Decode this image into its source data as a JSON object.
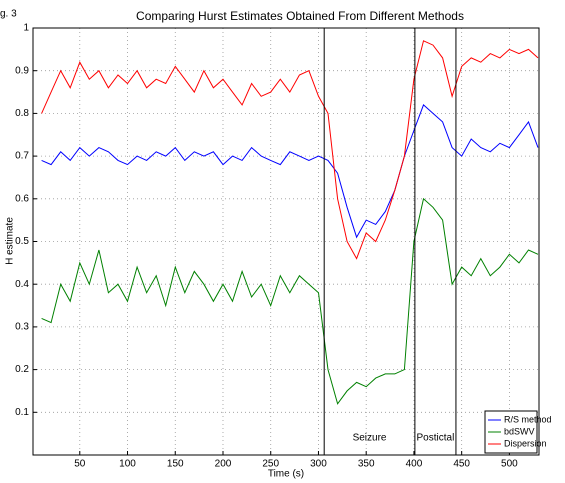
{
  "chart_data": {
    "type": "line",
    "figure_label": "g. 3",
    "title": "Comparing Hurst Estimates Obtained From Different Methods",
    "x_label": "Time (s)",
    "y_label": "H estimate",
    "x": [
      10,
      20,
      30,
      40,
      50,
      60,
      70,
      80,
      90,
      100,
      110,
      120,
      130,
      140,
      150,
      160,
      170,
      180,
      190,
      200,
      210,
      220,
      230,
      240,
      250,
      260,
      270,
      280,
      290,
      300,
      310,
      320,
      330,
      340,
      350,
      360,
      370,
      380,
      390,
      400,
      410,
      420,
      430,
      440,
      450,
      460,
      470,
      480,
      490,
      500,
      510,
      520,
      530
    ],
    "series": [
      {
        "name": "R/S method",
        "color": "#0000ff",
        "values": [
          0.69,
          0.68,
          0.71,
          0.69,
          0.72,
          0.7,
          0.72,
          0.71,
          0.69,
          0.68,
          0.7,
          0.69,
          0.71,
          0.7,
          0.72,
          0.69,
          0.71,
          0.7,
          0.71,
          0.68,
          0.7,
          0.69,
          0.72,
          0.7,
          0.69,
          0.68,
          0.71,
          0.7,
          0.69,
          0.7,
          0.69,
          0.66,
          0.58,
          0.51,
          0.55,
          0.54,
          0.57,
          0.62,
          0.7,
          0.76,
          0.82,
          0.8,
          0.78,
          0.72,
          0.7,
          0.74,
          0.72,
          0.71,
          0.73,
          0.72,
          0.75,
          0.78,
          0.72
        ]
      },
      {
        "name": "bdSWV",
        "color": "#008000",
        "values": [
          0.32,
          0.31,
          0.4,
          0.36,
          0.45,
          0.4,
          0.48,
          0.38,
          0.4,
          0.36,
          0.44,
          0.38,
          0.42,
          0.35,
          0.44,
          0.38,
          0.43,
          0.4,
          0.36,
          0.4,
          0.36,
          0.43,
          0.37,
          0.4,
          0.35,
          0.42,
          0.38,
          0.42,
          0.4,
          0.38,
          0.2,
          0.12,
          0.15,
          0.17,
          0.16,
          0.18,
          0.19,
          0.19,
          0.2,
          0.5,
          0.6,
          0.58,
          0.55,
          0.4,
          0.44,
          0.42,
          0.46,
          0.42,
          0.44,
          0.47,
          0.45,
          0.48,
          0.47
        ]
      },
      {
        "name": "Dispersion",
        "color": "#ff0000",
        "values": [
          0.8,
          0.85,
          0.9,
          0.86,
          0.92,
          0.88,
          0.9,
          0.86,
          0.89,
          0.87,
          0.9,
          0.86,
          0.88,
          0.87,
          0.91,
          0.88,
          0.85,
          0.9,
          0.86,
          0.88,
          0.85,
          0.82,
          0.87,
          0.84,
          0.85,
          0.88,
          0.85,
          0.89,
          0.9,
          0.84,
          0.8,
          0.6,
          0.5,
          0.46,
          0.52,
          0.5,
          0.55,
          0.62,
          0.7,
          0.88,
          0.97,
          0.96,
          0.93,
          0.84,
          0.91,
          0.93,
          0.92,
          0.94,
          0.93,
          0.95,
          0.94,
          0.95,
          0.93
        ]
      }
    ],
    "event_lines": [
      306,
      401,
      444
    ],
    "annotations": [
      "Seizure",
      "Postictal"
    ],
    "xlim": [
      1,
      531
    ],
    "xticks": [
      50,
      100,
      150,
      200,
      250,
      300,
      350,
      400,
      450,
      500
    ],
    "ylim": [
      0,
      1
    ],
    "yticks": [
      0.1,
      0.2,
      0.3,
      0.4,
      0.5,
      0.6,
      0.7,
      0.8,
      0.9,
      1
    ],
    "grid": true,
    "legend": "lower right"
  }
}
